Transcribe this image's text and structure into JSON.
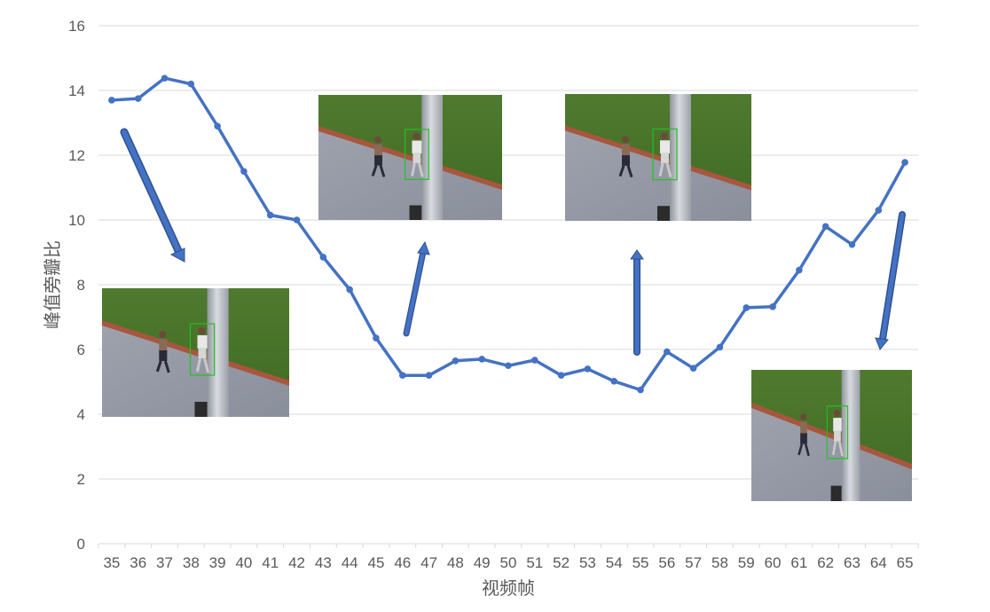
{
  "chart_data": {
    "type": "line",
    "xlabel": "视频帧",
    "ylabel": "峰值旁瓣比",
    "ylim": [
      0,
      16
    ],
    "yticks": [
      0,
      2,
      4,
      6,
      8,
      10,
      12,
      14,
      16
    ],
    "grid": true,
    "x": [
      35,
      36,
      37,
      38,
      39,
      40,
      41,
      42,
      43,
      44,
      45,
      46,
      47,
      48,
      49,
      50,
      51,
      52,
      53,
      54,
      55,
      56,
      57,
      58,
      59,
      60,
      61,
      62,
      63,
      64,
      65
    ],
    "series": [
      {
        "color": "#4472c4",
        "values": [
          13.7,
          13.75,
          14.38,
          14.2,
          12.9,
          11.5,
          10.15,
          10.0,
          8.85,
          7.85,
          6.35,
          5.2,
          5.2,
          5.65,
          5.7,
          5.5,
          5.67,
          5.2,
          5.4,
          5.02,
          4.75,
          5.93,
          5.42,
          6.07,
          7.29,
          7.32,
          8.45,
          9.8,
          9.24,
          10.3,
          11.78
        ]
      }
    ],
    "annotations": [
      {
        "type": "image",
        "subject": "tracking frame thumbnail: two runners on path, green bounding box",
        "near_frame": 35,
        "arrow": "down-right"
      },
      {
        "type": "image",
        "subject": "tracking frame thumbnail: runner partly occluded by pole",
        "near_frame": 46,
        "arrow": "up"
      },
      {
        "type": "image",
        "subject": "tracking frame thumbnail: runner fully occluded by pole",
        "near_frame": 55,
        "arrow": "up"
      },
      {
        "type": "image",
        "subject": "tracking frame thumbnail: runner reappears after pole",
        "near_frame": 65,
        "arrow": "down"
      }
    ],
    "accent_colors": {
      "line": "#4472c4",
      "arrow": "#4472c4",
      "arrow_outline": "#2f528f",
      "bbox": "#22c022"
    }
  }
}
